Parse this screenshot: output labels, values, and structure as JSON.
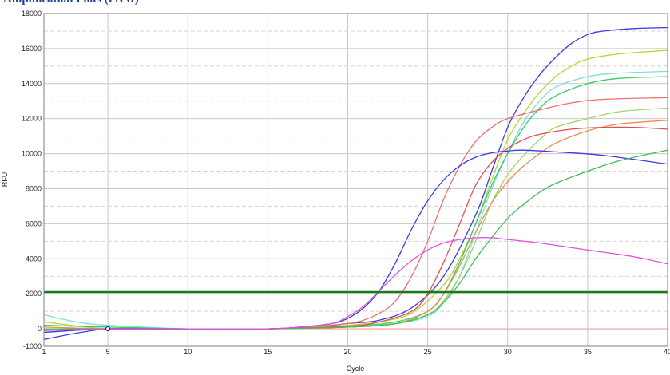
{
  "header": {
    "title": "Ampliﬁcation Plots (FAM)"
  },
  "chart_data": {
    "type": "line",
    "title": "Ampliﬁcation Plots (FAM)",
    "xlabel": "Cycle",
    "ylabel": "RFU",
    "xlim": [
      1,
      40
    ],
    "ylim": [
      -1000,
      18000
    ],
    "x_ticks": [
      1,
      5,
      10,
      15,
      20,
      25,
      30,
      35,
      40
    ],
    "y_ticks": [
      -1000,
      0,
      2000,
      4000,
      6000,
      8000,
      10000,
      12000,
      14000,
      16000,
      18000
    ],
    "grid": true,
    "legend": "none",
    "threshold": {
      "value": 2100,
      "color": "#1a7a1a"
    },
    "baseline": {
      "value": 0,
      "color": "#ff9a9a"
    },
    "marker": {
      "x": 5,
      "y": 0
    },
    "series": [
      {
        "color": "#3a3ae6",
        "values": [
          [
            1,
            -600
          ],
          [
            5,
            0
          ],
          [
            10,
            0
          ],
          [
            15,
            0
          ],
          [
            18,
            100
          ],
          [
            20,
            300
          ],
          [
            22,
            500
          ],
          [
            24,
            1200
          ],
          [
            26,
            3000
          ],
          [
            28,
            6500
          ],
          [
            29,
            9000
          ],
          [
            30,
            11500
          ],
          [
            31,
            13200
          ],
          [
            32,
            14500
          ],
          [
            33,
            15500
          ],
          [
            34,
            16300
          ],
          [
            35,
            16800
          ],
          [
            36,
            17000
          ],
          [
            38,
            17150
          ],
          [
            40,
            17200
          ]
        ]
      },
      {
        "color": "#b8d42e",
        "values": [
          [
            1,
            400
          ],
          [
            5,
            0
          ],
          [
            10,
            0
          ],
          [
            15,
            0
          ],
          [
            18,
            100
          ],
          [
            20,
            200
          ],
          [
            22,
            400
          ],
          [
            24,
            900
          ],
          [
            26,
            2500
          ],
          [
            27,
            4000
          ],
          [
            28,
            6000
          ],
          [
            29,
            8500
          ],
          [
            30,
            10800
          ],
          [
            31,
            12300
          ],
          [
            32,
            13500
          ],
          [
            33,
            14400
          ],
          [
            34,
            15000
          ],
          [
            35,
            15400
          ],
          [
            37,
            15700
          ],
          [
            40,
            15900
          ]
        ]
      },
      {
        "color": "#7ee0d8",
        "values": [
          [
            1,
            800
          ],
          [
            3,
            400
          ],
          [
            5,
            200
          ],
          [
            10,
            0
          ],
          [
            15,
            0
          ],
          [
            20,
            100
          ],
          [
            23,
            300
          ],
          [
            25,
            700
          ],
          [
            26,
            1500
          ],
          [
            27,
            3000
          ],
          [
            28,
            5500
          ],
          [
            29,
            8000
          ],
          [
            30,
            10000
          ],
          [
            31,
            11800
          ],
          [
            32,
            13000
          ],
          [
            33,
            13800
          ],
          [
            35,
            14400
          ],
          [
            37,
            14600
          ],
          [
            40,
            14700
          ]
        ]
      },
      {
        "color": "#33cc66",
        "values": [
          [
            1,
            200
          ],
          [
            5,
            100
          ],
          [
            10,
            0
          ],
          [
            15,
            0
          ],
          [
            20,
            150
          ],
          [
            23,
            400
          ],
          [
            25,
            1000
          ],
          [
            26,
            2000
          ],
          [
            27,
            3800
          ],
          [
            28,
            6000
          ],
          [
            29,
            8200
          ],
          [
            30,
            10000
          ],
          [
            31,
            11500
          ],
          [
            32,
            12600
          ],
          [
            33,
            13300
          ],
          [
            35,
            14000
          ],
          [
            37,
            14300
          ],
          [
            40,
            14400
          ]
        ]
      },
      {
        "color": "#f07070",
        "values": [
          [
            1,
            0
          ],
          [
            5,
            0
          ],
          [
            10,
            0
          ],
          [
            15,
            0
          ],
          [
            18,
            150
          ],
          [
            20,
            300
          ],
          [
            21,
            500
          ],
          [
            22,
            900
          ],
          [
            23,
            1600
          ],
          [
            24,
            3000
          ],
          [
            25,
            5000
          ],
          [
            26,
            7400
          ],
          [
            27,
            9300
          ],
          [
            28,
            10700
          ],
          [
            29,
            11500
          ],
          [
            30,
            12000
          ],
          [
            32,
            12500
          ],
          [
            34,
            12900
          ],
          [
            36,
            13100
          ],
          [
            40,
            13200
          ]
        ]
      },
      {
        "color": "#9ad86a",
        "values": [
          [
            1,
            -200
          ],
          [
            5,
            0
          ],
          [
            10,
            0
          ],
          [
            15,
            0
          ],
          [
            20,
            100
          ],
          [
            23,
            300
          ],
          [
            25,
            800
          ],
          [
            26,
            1600
          ],
          [
            27,
            3000
          ],
          [
            28,
            5000
          ],
          [
            29,
            7200
          ],
          [
            30,
            8800
          ],
          [
            31,
            9900
          ],
          [
            32,
            10800
          ],
          [
            33,
            11500
          ],
          [
            35,
            12000
          ],
          [
            37,
            12400
          ],
          [
            40,
            12600
          ]
        ]
      },
      {
        "color": "#f08a50",
        "values": [
          [
            1,
            100
          ],
          [
            5,
            0
          ],
          [
            10,
            0
          ],
          [
            15,
            0
          ],
          [
            20,
            100
          ],
          [
            23,
            300
          ],
          [
            25,
            1000
          ],
          [
            26,
            2000
          ],
          [
            27,
            3600
          ],
          [
            28,
            5500
          ],
          [
            29,
            7200
          ],
          [
            30,
            8400
          ],
          [
            31,
            9300
          ],
          [
            32,
            10000
          ],
          [
            33,
            10600
          ],
          [
            35,
            11300
          ],
          [
            37,
            11700
          ],
          [
            40,
            11900
          ]
        ]
      },
      {
        "color": "#e05050",
        "values": [
          [
            1,
            0
          ],
          [
            5,
            0
          ],
          [
            10,
            0
          ],
          [
            15,
            0
          ],
          [
            20,
            150
          ],
          [
            22,
            400
          ],
          [
            24,
            1000
          ],
          [
            25,
            2000
          ],
          [
            26,
            3800
          ],
          [
            27,
            6000
          ],
          [
            28,
            8200
          ],
          [
            29,
            9500
          ],
          [
            30,
            10300
          ],
          [
            31,
            10800
          ],
          [
            32,
            11100
          ],
          [
            34,
            11400
          ],
          [
            36,
            11500
          ],
          [
            38,
            11500
          ],
          [
            40,
            11400
          ]
        ]
      },
      {
        "color": "#3a3ae6",
        "values": [
          [
            1,
            -200
          ],
          [
            5,
            0
          ],
          [
            10,
            0
          ],
          [
            15,
            0
          ],
          [
            17,
            100
          ],
          [
            19,
            300
          ],
          [
            20,
            600
          ],
          [
            21,
            1200
          ],
          [
            22,
            2200
          ],
          [
            23,
            3800
          ],
          [
            24,
            5700
          ],
          [
            25,
            7300
          ],
          [
            26,
            8500
          ],
          [
            27,
            9300
          ],
          [
            28,
            9800
          ],
          [
            29,
            10050
          ],
          [
            30,
            10150
          ],
          [
            31,
            10200
          ],
          [
            33,
            10100
          ],
          [
            36,
            9900
          ],
          [
            40,
            9400
          ]
        ]
      },
      {
        "color": "#44bb55",
        "values": [
          [
            1,
            0
          ],
          [
            5,
            0
          ],
          [
            10,
            0
          ],
          [
            15,
            0
          ],
          [
            20,
            100
          ],
          [
            23,
            300
          ],
          [
            25,
            800
          ],
          [
            26,
            1500
          ],
          [
            27,
            2600
          ],
          [
            28,
            4000
          ],
          [
            29,
            5200
          ],
          [
            30,
            6300
          ],
          [
            31,
            7100
          ],
          [
            32,
            7800
          ],
          [
            33,
            8300
          ],
          [
            35,
            9000
          ],
          [
            37,
            9600
          ],
          [
            40,
            10200
          ]
        ]
      },
      {
        "color": "#e050e0",
        "values": [
          [
            1,
            -100
          ],
          [
            5,
            0
          ],
          [
            10,
            0
          ],
          [
            15,
            0
          ],
          [
            17,
            100
          ],
          [
            19,
            300
          ],
          [
            20,
            700
          ],
          [
            21,
            1300
          ],
          [
            22,
            2200
          ],
          [
            23,
            3100
          ],
          [
            24,
            3900
          ],
          [
            25,
            4500
          ],
          [
            26,
            4900
          ],
          [
            27,
            5100
          ],
          [
            28,
            5200
          ],
          [
            29,
            5200
          ],
          [
            30,
            5100
          ],
          [
            32,
            4900
          ],
          [
            35,
            4500
          ],
          [
            38,
            4100
          ],
          [
            40,
            3700
          ]
        ]
      }
    ]
  }
}
